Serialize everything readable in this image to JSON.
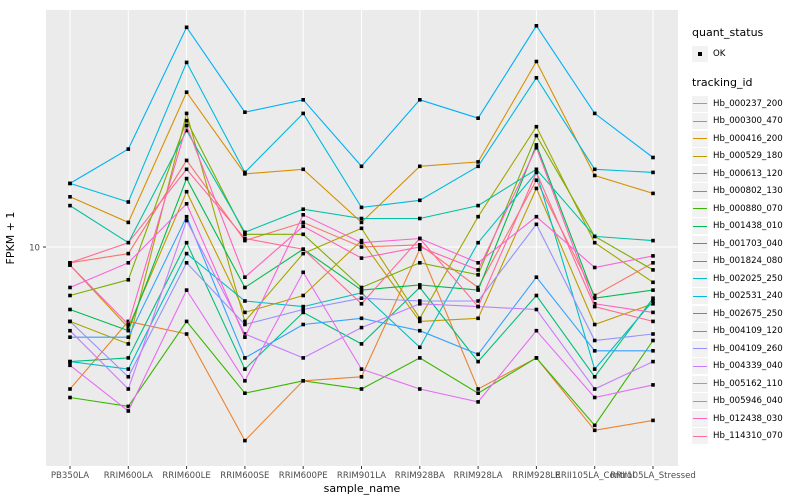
{
  "figure": {
    "background": "#FFFFFF",
    "panel_background": "#EBEBEB",
    "grid_color": "#FFFFFF",
    "tick_color": "#333333",
    "tick_label_color": "#4D4D4D",
    "point_color": "#000000"
  },
  "axes": {
    "x_title": "sample_name",
    "y_title": "FPKM + 1",
    "y_tick_labels": [
      "10"
    ]
  },
  "legend": {
    "quant_status_title": "quant_status",
    "quant_status_items": [
      {
        "label": "OK"
      }
    ],
    "tracking_title": "tracking_id"
  },
  "chart_data": {
    "type": "line",
    "title": "",
    "xlabel": "sample_name",
    "ylabel": "FPKM + 1",
    "y_scale": "log10",
    "ylim_approx": [
      3.6,
      30
    ],
    "grid": "major",
    "legend_position": "right",
    "point_shape": "filled-square",
    "categories": [
      "PB350LA",
      "RRIM600LA",
      "RRIM600LE",
      "RRIM600SE",
      "RRIM600PE",
      "RRIM901LA",
      "RRIM928BA",
      "RRIM928LA",
      "RRIM928LE",
      "RRII105LA_Control",
      "RRII105LA_Stressed"
    ],
    "series": [
      {
        "name": "Hb_000237_200",
        "color": "#F8766D",
        "values": [
          9.3,
          9.7,
          14.9,
          10.3,
          11.2,
          10.0,
          10.1,
          8.3,
          13.6,
          8.0,
          9.3
        ]
      },
      {
        "name": "Hb_000300_470",
        "color": "#EA8331",
        "values": [
          5.2,
          7.1,
          6.7,
          4.1,
          5.4,
          5.5,
          9.9,
          5.2,
          6.0,
          4.3,
          4.5
        ]
      },
      {
        "name": "Hb_000416_200",
        "color": "#D89000",
        "values": [
          12.6,
          11.2,
          20.4,
          14.0,
          14.3,
          11.2,
          14.5,
          14.8,
          23.5,
          13.9,
          12.8
        ]
      },
      {
        "name": "Hb_000529_180",
        "color": "#C09B00",
        "values": [
          9.2,
          6.9,
          12.9,
          7.4,
          8.0,
          10.3,
          7.1,
          7.2,
          13.1,
          7.0,
          7.7
        ]
      },
      {
        "name": "Hb_000613_120",
        "color": "#A3A500",
        "values": [
          7.1,
          6.4,
          18.5,
          7.1,
          9.7,
          10.9,
          7.2,
          11.5,
          17.4,
          10.2,
          8.5
        ]
      },
      {
        "name": "Hb_000802_130",
        "color": "#7CAE00",
        "values": [
          8.0,
          8.6,
          17.9,
          10.6,
          10.6,
          8.3,
          9.3,
          8.8,
          16.7,
          10.5,
          9.0
        ]
      },
      {
        "name": "Hb_000880_070",
        "color": "#39B600",
        "values": [
          5.0,
          4.8,
          7.1,
          5.1,
          5.4,
          5.2,
          6.0,
          5.1,
          6.0,
          4.4,
          6.5
        ]
      },
      {
        "name": "Hb_001438_010",
        "color": "#00BB4E",
        "values": [
          7.5,
          6.8,
          13.7,
          8.3,
          9.9,
          8.2,
          8.4,
          8.2,
          16.0,
          7.9,
          8.2
        ]
      },
      {
        "name": "Hb_001703_040",
        "color": "#00BF7D",
        "values": [
          5.9,
          6.0,
          10.2,
          5.7,
          7.4,
          6.4,
          8.3,
          5.9,
          8.0,
          5.5,
          7.9
        ]
      },
      {
        "name": "Hb_001824_080",
        "color": "#00C1A3",
        "values": [
          12.1,
          10.2,
          17.1,
          10.7,
          11.9,
          11.4,
          11.4,
          12.1,
          14.3,
          10.5,
          10.3
        ]
      },
      {
        "name": "Hb_002025_250",
        "color": "#00BFC4",
        "values": [
          5.9,
          5.7,
          9.7,
          7.8,
          7.6,
          8.1,
          6.3,
          10.2,
          14.1,
          5.7,
          7.8
        ]
      },
      {
        "name": "Hb_002531_240",
        "color": "#00BAE0",
        "values": [
          13.4,
          12.3,
          23.4,
          14.1,
          18.5,
          12.0,
          12.4,
          14.5,
          21.8,
          14.3,
          14.1
        ]
      },
      {
        "name": "Hb_002675_250",
        "color": "#00B0F6",
        "values": [
          13.4,
          15.7,
          27.5,
          18.6,
          19.7,
          14.5,
          19.7,
          18.1,
          27.7,
          18.5,
          15.1
        ]
      },
      {
        "name": "Hb_004109_120",
        "color": "#35A2FF",
        "values": [
          6.6,
          6.6,
          11.5,
          6.0,
          7.0,
          7.2,
          6.8,
          6.1,
          8.7,
          6.2,
          6.2
        ]
      },
      {
        "name": "Hb_004109_260",
        "color": "#9590FF",
        "values": [
          7.1,
          5.5,
          9.3,
          7.0,
          7.5,
          7.9,
          7.8,
          7.8,
          11.1,
          6.5,
          6.7
        ]
      },
      {
        "name": "Hb_004339_040",
        "color": "#C77CFF",
        "values": [
          6.8,
          5.2,
          11.3,
          6.7,
          6.0,
          6.9,
          7.7,
          7.6,
          7.5,
          5.2,
          5.9
        ]
      },
      {
        "name": "Hb_005162_110",
        "color": "#E76BF3",
        "values": [
          5.8,
          4.7,
          8.2,
          5.4,
          8.9,
          5.7,
          5.2,
          4.9,
          6.8,
          5.0,
          5.3
        ]
      },
      {
        "name": "Hb_005946_040",
        "color": "#FA62DB",
        "values": [
          8.3,
          9.3,
          12.2,
          6.6,
          11.6,
          10.2,
          10.4,
          9.3,
          11.5,
          9.1,
          9.6
        ]
      },
      {
        "name": "Hb_012438_030",
        "color": "#FF62BC",
        "values": [
          9.2,
          7.0,
          17.5,
          8.7,
          11.0,
          9.5,
          10.0,
          9.0,
          15.8,
          7.7,
          7.4
        ]
      },
      {
        "name": "Hb_114310_070",
        "color": "#FF6A98",
        "values": [
          9.3,
          10.2,
          14.3,
          10.4,
          9.9,
          7.7,
          10.4,
          7.6,
          14.1,
          7.6,
          7.1
        ]
      }
    ]
  }
}
